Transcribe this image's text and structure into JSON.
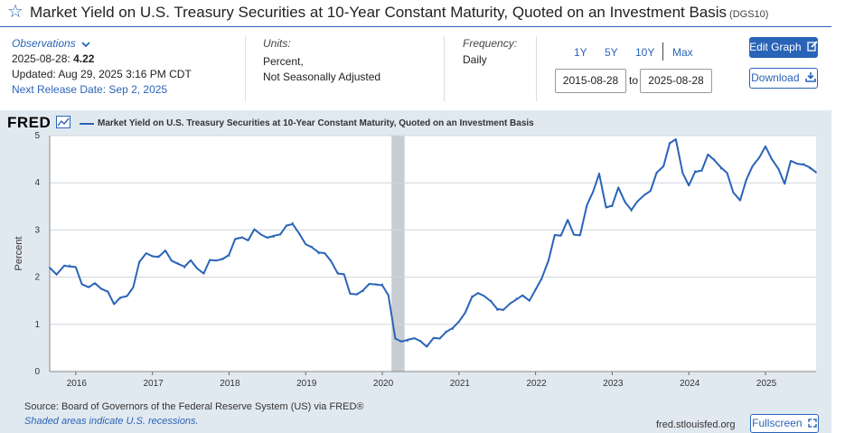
{
  "header": {
    "title": "Market Yield on U.S. Treasury Securities at 10-Year Constant Maturity, Quoted on an Investment Basis",
    "series_id": "(DGS10)"
  },
  "observations": {
    "label": "Observations",
    "date": "2025-08-28:",
    "value": "4.22",
    "updated": "Updated: Aug 29, 2025 3:16 PM CDT",
    "next_release": "Next Release Date: Sep 2, 2025"
  },
  "units": {
    "label": "Units:",
    "line1": "Percent,",
    "line2": "Not Seasonally Adjusted"
  },
  "frequency": {
    "label": "Frequency:",
    "value": "Daily"
  },
  "range_buttons": [
    "1Y",
    "5Y",
    "10Y",
    "Max"
  ],
  "date_range": {
    "start": "2015-08-28",
    "to": "to",
    "end": "2025-08-28"
  },
  "buttons": {
    "edit_graph": "Edit Graph",
    "download": "Download",
    "fullscreen": "Fullscreen"
  },
  "footer": {
    "source": "Source: Board of Governors of the Federal Reserve System (US) via FRED®",
    "shaded": "Shaded areas indicate U.S. recessions.",
    "url": "fred.stlouisfed.org"
  },
  "logo": "FRED",
  "colors": {
    "accent": "#2a64b8",
    "line": "#2a64b8",
    "recession": "#c8cdd3",
    "panel": "#e1e9f0"
  },
  "chart_data": {
    "type": "line",
    "title": "Market Yield on U.S. Treasury Securities at 10-Year Constant Maturity, Quoted on an Investment Basis",
    "xlabel": "",
    "ylabel": "Percent",
    "ylim": [
      0,
      5
    ],
    "xlim": [
      2015.66,
      2025.66
    ],
    "yticks": [
      0,
      1,
      2,
      3,
      4,
      5
    ],
    "xticks": [
      "2016",
      "2017",
      "2018",
      "2019",
      "2020",
      "2021",
      "2022",
      "2023",
      "2024",
      "2025"
    ],
    "grid": true,
    "legend": "top-left",
    "recessions": [
      [
        2020.12,
        2020.29
      ]
    ],
    "series": [
      {
        "name": "Market Yield on U.S. Treasury Securities at 10-Year Constant Maturity, Quoted on an Investment Basis",
        "points": [
          [
            2015.66,
            2.2
          ],
          [
            2015.75,
            2.05
          ],
          [
            2015.85,
            2.25
          ],
          [
            2015.92,
            2.25
          ],
          [
            2016.0,
            2.2
          ],
          [
            2016.08,
            1.85
          ],
          [
            2016.17,
            1.8
          ],
          [
            2016.25,
            1.85
          ],
          [
            2016.33,
            1.75
          ],
          [
            2016.42,
            1.7
          ],
          [
            2016.5,
            1.45
          ],
          [
            2016.58,
            1.55
          ],
          [
            2016.67,
            1.6
          ],
          [
            2016.75,
            1.8
          ],
          [
            2016.83,
            2.3
          ],
          [
            2016.92,
            2.5
          ],
          [
            2017.0,
            2.45
          ],
          [
            2017.08,
            2.45
          ],
          [
            2017.17,
            2.55
          ],
          [
            2017.25,
            2.35
          ],
          [
            2017.33,
            2.3
          ],
          [
            2017.42,
            2.2
          ],
          [
            2017.5,
            2.35
          ],
          [
            2017.58,
            2.2
          ],
          [
            2017.67,
            2.1
          ],
          [
            2017.75,
            2.35
          ],
          [
            2017.83,
            2.35
          ],
          [
            2017.92,
            2.4
          ],
          [
            2018.0,
            2.45
          ],
          [
            2018.08,
            2.8
          ],
          [
            2018.17,
            2.85
          ],
          [
            2018.25,
            2.8
          ],
          [
            2018.33,
            3.0
          ],
          [
            2018.42,
            2.9
          ],
          [
            2018.5,
            2.85
          ],
          [
            2018.58,
            2.85
          ],
          [
            2018.67,
            2.9
          ],
          [
            2018.75,
            3.1
          ],
          [
            2018.83,
            3.15
          ],
          [
            2018.92,
            2.9
          ],
          [
            2019.0,
            2.7
          ],
          [
            2019.08,
            2.65
          ],
          [
            2019.17,
            2.5
          ],
          [
            2019.25,
            2.5
          ],
          [
            2019.33,
            2.35
          ],
          [
            2019.42,
            2.1
          ],
          [
            2019.5,
            2.05
          ],
          [
            2019.58,
            1.65
          ],
          [
            2019.67,
            1.65
          ],
          [
            2019.75,
            1.7
          ],
          [
            2019.83,
            1.85
          ],
          [
            2019.92,
            1.85
          ],
          [
            2020.0,
            1.85
          ],
          [
            2020.08,
            1.6
          ],
          [
            2020.17,
            0.7
          ],
          [
            2020.25,
            0.65
          ],
          [
            2020.33,
            0.65
          ],
          [
            2020.42,
            0.7
          ],
          [
            2020.5,
            0.65
          ],
          [
            2020.58,
            0.55
          ],
          [
            2020.67,
            0.7
          ],
          [
            2020.75,
            0.7
          ],
          [
            2020.83,
            0.85
          ],
          [
            2020.92,
            0.9
          ],
          [
            2021.0,
            1.05
          ],
          [
            2021.08,
            1.25
          ],
          [
            2021.17,
            1.6
          ],
          [
            2021.25,
            1.65
          ],
          [
            2021.33,
            1.6
          ],
          [
            2021.42,
            1.5
          ],
          [
            2021.5,
            1.3
          ],
          [
            2021.58,
            1.3
          ],
          [
            2021.67,
            1.45
          ],
          [
            2021.75,
            1.55
          ],
          [
            2021.83,
            1.6
          ],
          [
            2021.92,
            1.5
          ],
          [
            2022.0,
            1.75
          ],
          [
            2022.08,
            1.95
          ],
          [
            2022.17,
            2.35
          ],
          [
            2022.25,
            2.9
          ],
          [
            2022.33,
            2.9
          ],
          [
            2022.42,
            3.2
          ],
          [
            2022.5,
            2.9
          ],
          [
            2022.58,
            2.9
          ],
          [
            2022.67,
            3.5
          ],
          [
            2022.75,
            3.8
          ],
          [
            2022.83,
            4.2
          ],
          [
            2022.92,
            3.5
          ],
          [
            2023.0,
            3.5
          ],
          [
            2023.08,
            3.9
          ],
          [
            2023.17,
            3.6
          ],
          [
            2023.25,
            3.4
          ],
          [
            2023.33,
            3.6
          ],
          [
            2023.42,
            3.75
          ],
          [
            2023.5,
            3.85
          ],
          [
            2023.58,
            4.2
          ],
          [
            2023.67,
            4.35
          ],
          [
            2023.75,
            4.85
          ],
          [
            2023.83,
            4.9
          ],
          [
            2023.92,
            4.2
          ],
          [
            2024.0,
            3.95
          ],
          [
            2024.08,
            4.25
          ],
          [
            2024.17,
            4.25
          ],
          [
            2024.25,
            4.6
          ],
          [
            2024.33,
            4.5
          ],
          [
            2024.42,
            4.3
          ],
          [
            2024.5,
            4.2
          ],
          [
            2024.58,
            3.8
          ],
          [
            2024.67,
            3.65
          ],
          [
            2024.75,
            4.05
          ],
          [
            2024.83,
            4.35
          ],
          [
            2024.92,
            4.55
          ],
          [
            2025.0,
            4.75
          ],
          [
            2025.08,
            4.5
          ],
          [
            2025.17,
            4.3
          ],
          [
            2025.25,
            4.0
          ],
          [
            2025.33,
            4.45
          ],
          [
            2025.42,
            4.4
          ],
          [
            2025.5,
            4.4
          ],
          [
            2025.58,
            4.3
          ],
          [
            2025.66,
            4.22
          ]
        ]
      }
    ]
  }
}
